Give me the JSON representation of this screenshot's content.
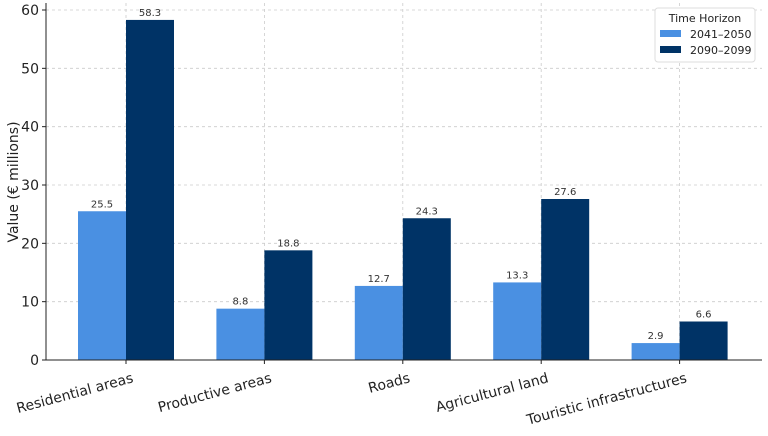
{
  "chart_data": {
    "type": "bar",
    "title": "",
    "xlabel": "",
    "ylabel": "Value (€ millions)",
    "categories": [
      "Residential areas",
      "Productive areas",
      "Roads",
      "Agricultural land",
      "Touristic infrastructures"
    ],
    "series": [
      {
        "name": "2041–2050",
        "color": "#4a90e2",
        "values": [
          25.5,
          8.8,
          12.7,
          13.3,
          2.9
        ]
      },
      {
        "name": "2090–2099",
        "color": "#003366",
        "values": [
          58.3,
          18.8,
          24.3,
          27.6,
          6.6
        ]
      }
    ],
    "data_labels": [
      [
        "25.5",
        "8.8",
        "12.7",
        "13.3",
        "2.9"
      ],
      [
        "58.3",
        "18.8",
        "24.3",
        "27.6",
        "6.6"
      ]
    ],
    "ylim": [
      0,
      61.2
    ],
    "yticks": [
      "0",
      "10",
      "20",
      "30",
      "40",
      "50",
      "60"
    ],
    "grid": true,
    "legend": {
      "title": "Time Horizon",
      "placement": "top-right"
    }
  }
}
